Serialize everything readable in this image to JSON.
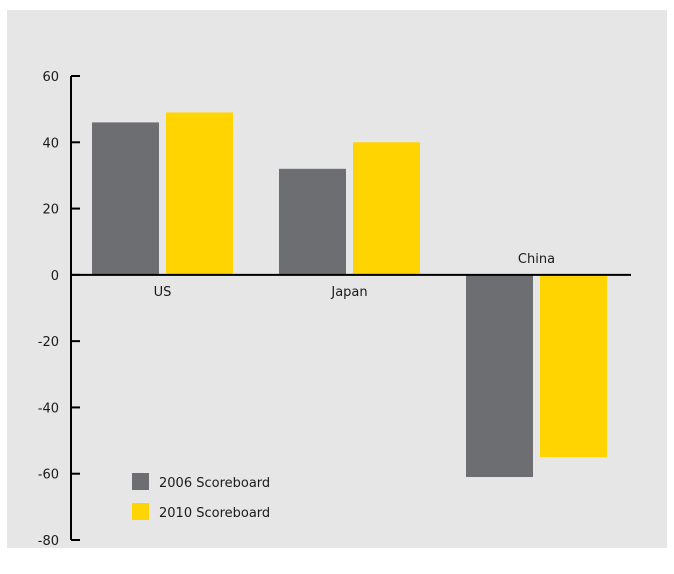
{
  "chart_data": {
    "type": "bar",
    "categories": [
      "US",
      "Japan",
      "China"
    ],
    "series": [
      {
        "name": "2006 Scoreboard",
        "values": [
          46,
          32,
          -61
        ],
        "color": "#6d6e71"
      },
      {
        "name": "2010 Scoreboard",
        "values": [
          49,
          40,
          -55
        ],
        "color": "#ffd400"
      }
    ],
    "title": "",
    "xlabel": "",
    "ylabel": "",
    "ylim": [
      -80,
      60
    ],
    "yticks": [
      60,
      40,
      20,
      0,
      -20,
      -40,
      -60,
      -80
    ],
    "grid": false,
    "legend_position": "bottom-left",
    "background_color": "#e6e6e7",
    "axis_color": "#000000"
  }
}
